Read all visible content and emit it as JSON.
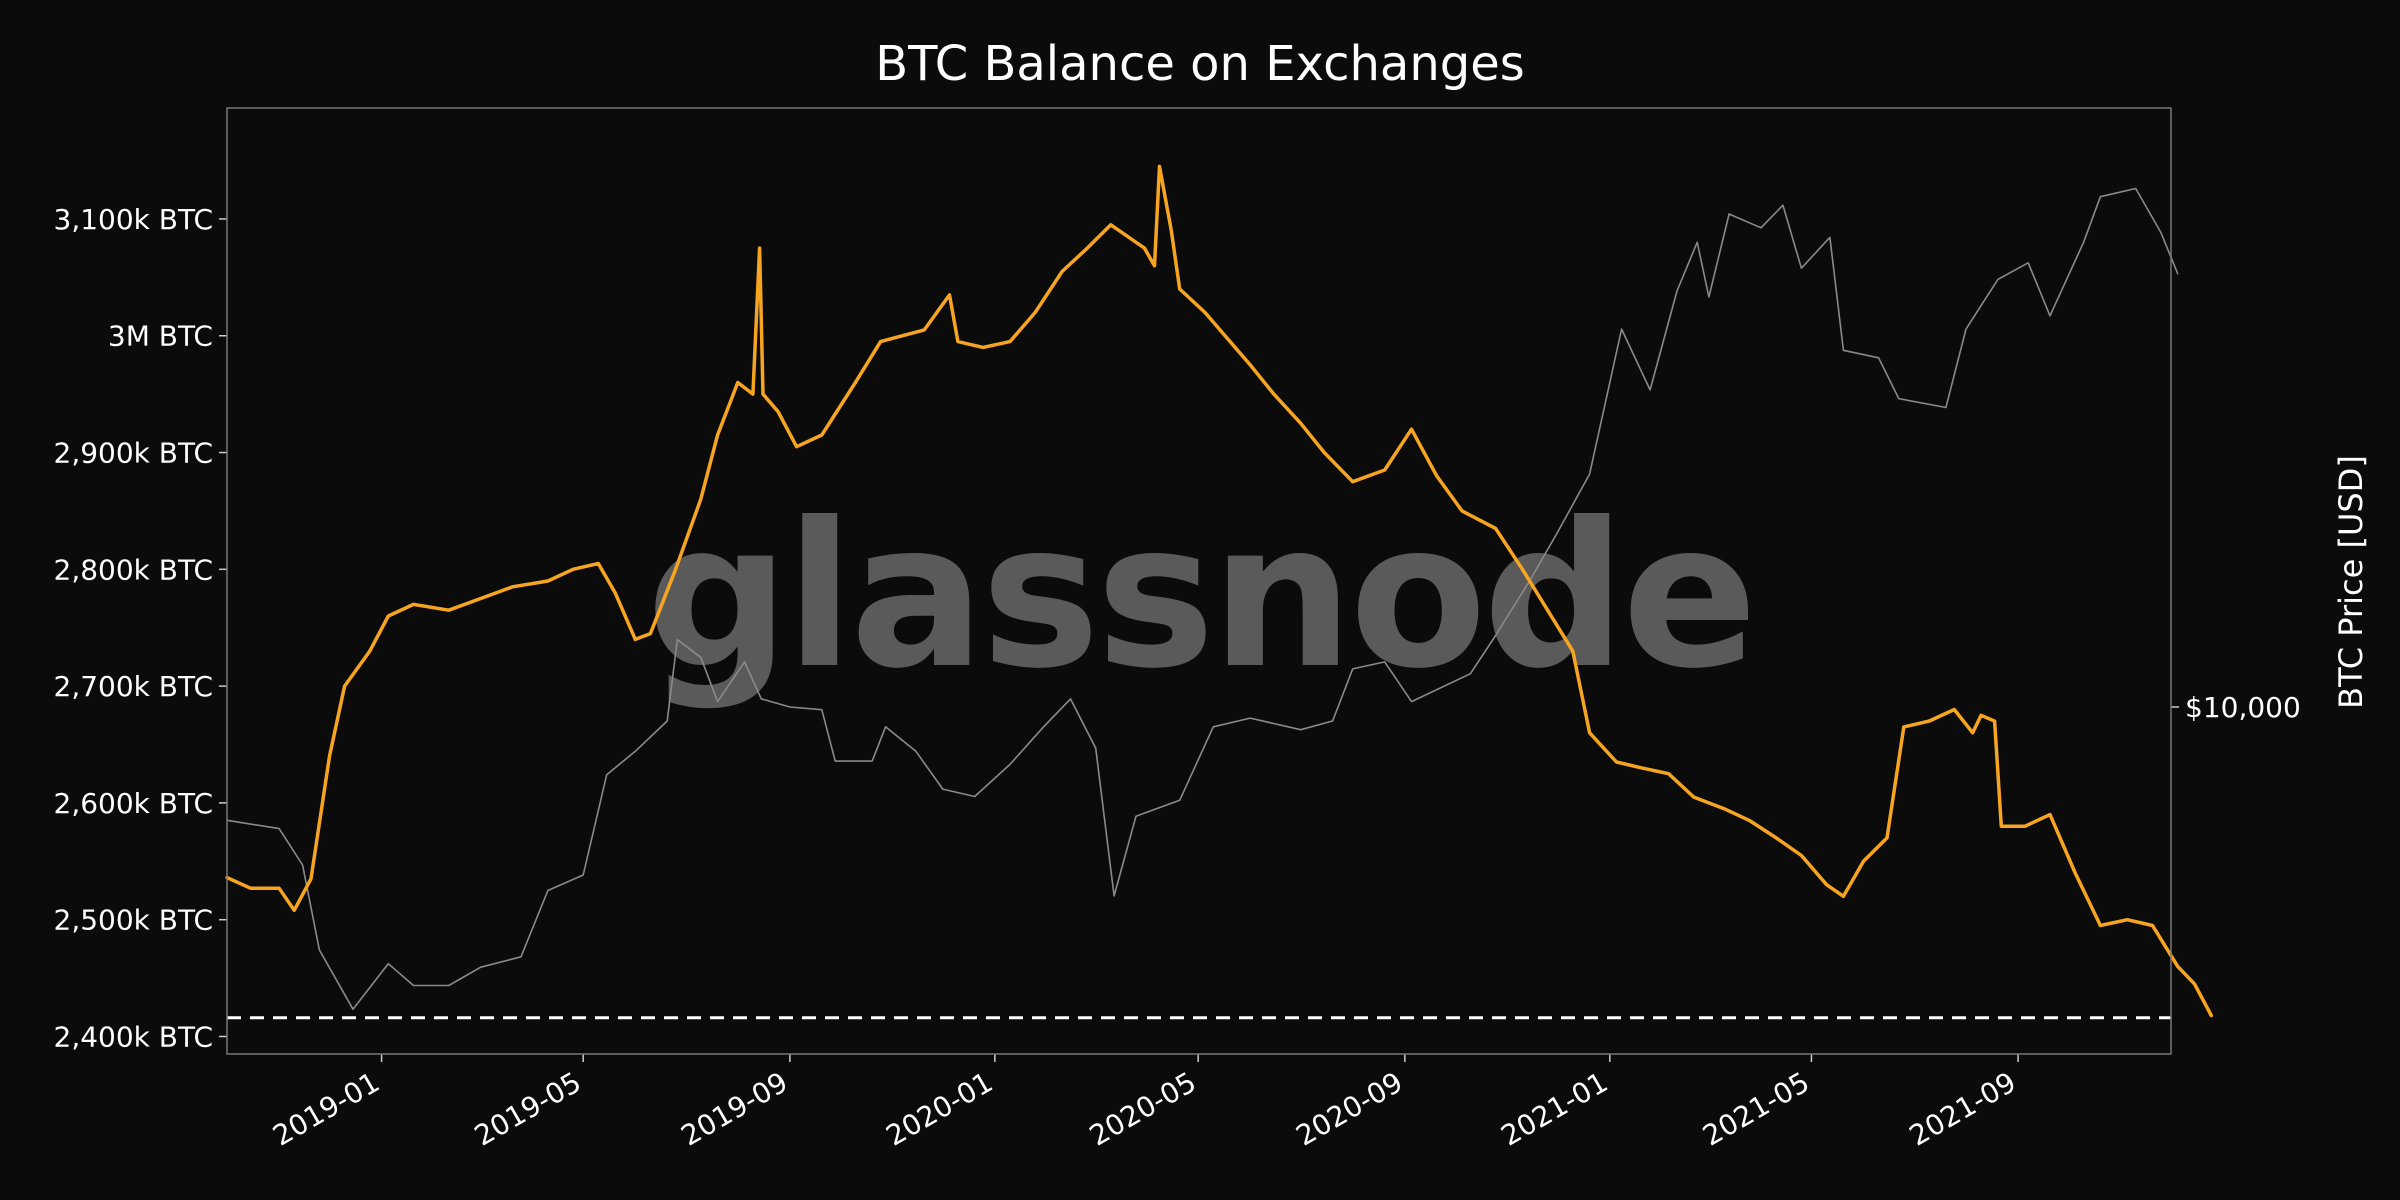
{
  "chart_data": {
    "type": "line",
    "title": "BTC Balance on Exchanges",
    "watermark": "glassnode",
    "y_left": {
      "label": "",
      "ticks": [
        {
          "value": 2400,
          "label": "2,400k BTC"
        },
        {
          "value": 2500,
          "label": "2,500k BTC"
        },
        {
          "value": 2600,
          "label": "2,600k BTC"
        },
        {
          "value": 2700,
          "label": "2,700k BTC"
        },
        {
          "value": 2800,
          "label": "2,800k BTC"
        },
        {
          "value": 2900,
          "label": "2,900k BTC"
        },
        {
          "value": 3000,
          "label": "3M BTC"
        },
        {
          "value": 3100,
          "label": "3,100k BTC"
        }
      ],
      "ylim": [
        2385,
        3195
      ],
      "unit": "k BTC"
    },
    "y_right": {
      "label": "BTC Price [USD]",
      "scale": "log",
      "ticks": [
        {
          "value": 10000,
          "label": "$10,000"
        }
      ],
      "ylim": [
        2800,
        90000
      ]
    },
    "x": {
      "type": "date",
      "range": [
        "2018-10-01",
        "2021-12-01"
      ],
      "ticks": [
        {
          "date": "2019-01-01",
          "label": "2019-01"
        },
        {
          "date": "2019-05-01",
          "label": "2019-05"
        },
        {
          "date": "2019-09-01",
          "label": "2019-09"
        },
        {
          "date": "2020-01-01",
          "label": "2020-01"
        },
        {
          "date": "2020-05-01",
          "label": "2020-05"
        },
        {
          "date": "2020-09-01",
          "label": "2020-09"
        },
        {
          "date": "2021-01-01",
          "label": "2021-01"
        },
        {
          "date": "2021-05-01",
          "label": "2021-05"
        },
        {
          "date": "2021-09-01",
          "label": "2021-09"
        }
      ]
    },
    "reference_line": {
      "value": 2416,
      "style": "dashed",
      "color": "#ffffff"
    },
    "series": [
      {
        "name": "BTC Balance on Exchanges",
        "axis": "left",
        "color": "#f7a520",
        "points": [
          [
            "2018-10-01",
            2536
          ],
          [
            "2018-10-15",
            2527
          ],
          [
            "2018-11-01",
            2527
          ],
          [
            "2018-11-10",
            2508
          ],
          [
            "2018-11-20",
            2535
          ],
          [
            "2018-12-01",
            2640
          ],
          [
            "2018-12-10",
            2700
          ],
          [
            "2018-12-25",
            2730
          ],
          [
            "2019-01-05",
            2760
          ],
          [
            "2019-01-20",
            2770
          ],
          [
            "2019-02-10",
            2765
          ],
          [
            "2019-03-01",
            2775
          ],
          [
            "2019-03-20",
            2785
          ],
          [
            "2019-04-10",
            2790
          ],
          [
            "2019-04-25",
            2800
          ],
          [
            "2019-05-10",
            2805
          ],
          [
            "2019-05-20",
            2780
          ],
          [
            "2019-06-01",
            2740
          ],
          [
            "2019-06-10",
            2745
          ],
          [
            "2019-06-25",
            2800
          ],
          [
            "2019-07-10",
            2860
          ],
          [
            "2019-07-20",
            2915
          ],
          [
            "2019-08-01",
            2960
          ],
          [
            "2019-08-10",
            2950
          ],
          [
            "2019-08-14",
            3075
          ],
          [
            "2019-08-16",
            2950
          ],
          [
            "2019-08-25",
            2935
          ],
          [
            "2019-09-05",
            2905
          ],
          [
            "2019-09-20",
            2915
          ],
          [
            "2019-10-10",
            2960
          ],
          [
            "2019-10-25",
            2995
          ],
          [
            "2019-11-20",
            3005
          ],
          [
            "2019-12-05",
            3035
          ],
          [
            "2019-12-10",
            2995
          ],
          [
            "2019-12-25",
            2990
          ],
          [
            "2020-01-10",
            2995
          ],
          [
            "2020-01-25",
            3020
          ],
          [
            "2020-02-10",
            3055
          ],
          [
            "2020-02-25",
            3075
          ],
          [
            "2020-03-10",
            3095
          ],
          [
            "2020-03-30",
            3075
          ],
          [
            "2020-04-05",
            3060
          ],
          [
            "2020-04-08",
            3145
          ],
          [
            "2020-04-15",
            3090
          ],
          [
            "2020-04-20",
            3040
          ],
          [
            "2020-05-05",
            3020
          ],
          [
            "2020-05-20",
            2995
          ],
          [
            "2020-06-01",
            2975
          ],
          [
            "2020-06-15",
            2950
          ],
          [
            "2020-07-01",
            2925
          ],
          [
            "2020-07-15",
            2900
          ],
          [
            "2020-08-01",
            2875
          ],
          [
            "2020-08-20",
            2885
          ],
          [
            "2020-09-05",
            2920
          ],
          [
            "2020-09-20",
            2880
          ],
          [
            "2020-10-05",
            2850
          ],
          [
            "2020-10-25",
            2835
          ],
          [
            "2020-11-10",
            2800
          ],
          [
            "2020-11-25",
            2765
          ],
          [
            "2020-12-10",
            2730
          ],
          [
            "2020-12-20",
            2660
          ],
          [
            "2021-01-05",
            2635
          ],
          [
            "2021-01-20",
            2630
          ],
          [
            "2021-02-05",
            2625
          ],
          [
            "2021-02-20",
            2605
          ],
          [
            "2021-03-10",
            2595
          ],
          [
            "2021-03-25",
            2585
          ],
          [
            "2021-04-10",
            2570
          ],
          [
            "2021-04-25",
            2555
          ],
          [
            "2021-05-10",
            2530
          ],
          [
            "2021-05-20",
            2520
          ],
          [
            "2021-06-01",
            2550
          ],
          [
            "2021-06-15",
            2570
          ],
          [
            "2021-06-25",
            2665
          ],
          [
            "2021-07-10",
            2670
          ],
          [
            "2021-07-25",
            2680
          ],
          [
            "2021-08-05",
            2660
          ],
          [
            "2021-08-10",
            2675
          ],
          [
            "2021-08-18",
            2670
          ],
          [
            "2021-08-22",
            2580
          ],
          [
            "2021-09-05",
            2580
          ],
          [
            "2021-09-20",
            2590
          ],
          [
            "2021-10-05",
            2540
          ],
          [
            "2021-10-20",
            2495
          ],
          [
            "2021-11-05",
            2500
          ],
          [
            "2021-11-20",
            2495
          ],
          [
            "2021-12-05",
            2460
          ],
          [
            "2021-12-15",
            2445
          ],
          [
            "2021-12-25",
            2418
          ]
        ]
      },
      {
        "name": "BTC Price [USD]",
        "axis": "right",
        "color": "#8a8a8a",
        "points": [
          [
            "2018-10-01",
            6600
          ],
          [
            "2018-11-01",
            6400
          ],
          [
            "2018-11-15",
            5600
          ],
          [
            "2018-11-25",
            4100
          ],
          [
            "2018-12-15",
            3300
          ],
          [
            "2019-01-05",
            3900
          ],
          [
            "2019-01-20",
            3600
          ],
          [
            "2019-02-10",
            3600
          ],
          [
            "2019-03-01",
            3850
          ],
          [
            "2019-03-25",
            4000
          ],
          [
            "2019-04-10",
            5100
          ],
          [
            "2019-05-01",
            5400
          ],
          [
            "2019-05-15",
            7800
          ],
          [
            "2019-06-01",
            8500
          ],
          [
            "2019-06-20",
            9500
          ],
          [
            "2019-06-26",
            12800
          ],
          [
            "2019-07-10",
            12000
          ],
          [
            "2019-07-20",
            10200
          ],
          [
            "2019-08-05",
            11800
          ],
          [
            "2019-08-15",
            10300
          ],
          [
            "2019-09-01",
            10000
          ],
          [
            "2019-09-20",
            9900
          ],
          [
            "2019-09-28",
            8200
          ],
          [
            "2019-10-20",
            8200
          ],
          [
            "2019-10-28",
            9300
          ],
          [
            "2019-11-15",
            8500
          ],
          [
            "2019-12-01",
            7400
          ],
          [
            "2019-12-20",
            7200
          ],
          [
            "2020-01-10",
            8100
          ],
          [
            "2020-01-30",
            9300
          ],
          [
            "2020-02-15",
            10300
          ],
          [
            "2020-03-01",
            8600
          ],
          [
            "2020-03-12",
            5000
          ],
          [
            "2020-03-25",
            6700
          ],
          [
            "2020-04-20",
            7100
          ],
          [
            "2020-05-10",
            9300
          ],
          [
            "2020-06-01",
            9600
          ],
          [
            "2020-07-01",
            9200
          ],
          [
            "2020-07-20",
            9500
          ],
          [
            "2020-08-01",
            11500
          ],
          [
            "2020-08-20",
            11800
          ],
          [
            "2020-09-05",
            10200
          ],
          [
            "2020-10-10",
            11300
          ],
          [
            "2020-10-25",
            13000
          ],
          [
            "2020-11-15",
            16000
          ],
          [
            "2020-12-01",
            19000
          ],
          [
            "2020-12-20",
            23500
          ],
          [
            "2021-01-08",
            40000
          ],
          [
            "2021-01-25",
            32000
          ],
          [
            "2021-02-10",
            46000
          ],
          [
            "2021-02-22",
            55000
          ],
          [
            "2021-03-01",
            45000
          ],
          [
            "2021-03-13",
            61000
          ],
          [
            "2021-04-01",
            58000
          ],
          [
            "2021-04-14",
            63000
          ],
          [
            "2021-04-25",
            50000
          ],
          [
            "2021-05-12",
            56000
          ],
          [
            "2021-05-20",
            37000
          ],
          [
            "2021-06-10",
            36000
          ],
          [
            "2021-06-22",
            31000
          ],
          [
            "2021-07-20",
            30000
          ],
          [
            "2021-08-01",
            40000
          ],
          [
            "2021-08-20",
            48000
          ],
          [
            "2021-09-07",
            51000
          ],
          [
            "2021-09-20",
            42000
          ],
          [
            "2021-10-10",
            55000
          ],
          [
            "2021-10-20",
            65000
          ],
          [
            "2021-11-10",
            67000
          ],
          [
            "2021-11-25",
            57000
          ],
          [
            "2021-12-05",
            49000
          ]
        ]
      }
    ]
  }
}
